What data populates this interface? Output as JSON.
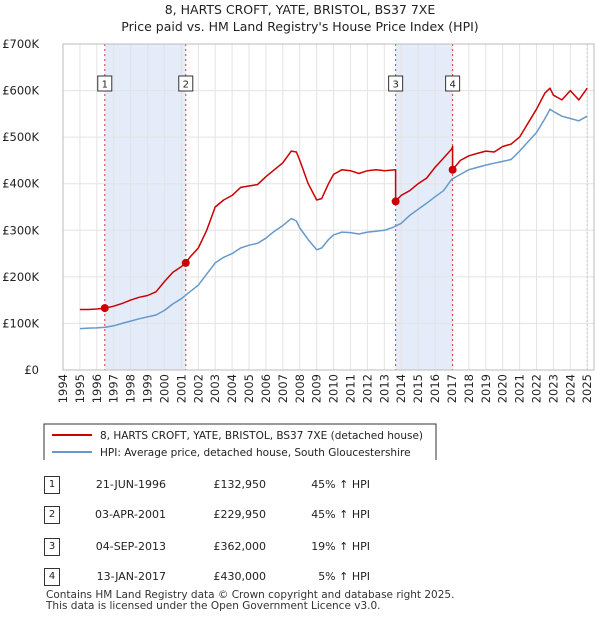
{
  "chart_data": {
    "type": "line",
    "title": "8, HARTS CROFT, YATE, BRISTOL, BS37 7XE",
    "subtitle": "Price paid vs. HM Land Registry's House Price Index (HPI)",
    "xlabel": "",
    "ylabel": "",
    "xlim": [
      1994,
      2025.4
    ],
    "ylim": [
      0,
      700000
    ],
    "grid": true,
    "x_ticks": [
      1994,
      1995,
      1996,
      1997,
      1998,
      1999,
      2000,
      2001,
      2002,
      2003,
      2004,
      2005,
      2006,
      2007,
      2008,
      2009,
      2010,
      2011,
      2012,
      2013,
      2014,
      2015,
      2016,
      2017,
      2018,
      2019,
      2020,
      2021,
      2022,
      2023,
      2024,
      2025
    ],
    "x_tick_labels": [
      "1994",
      "1995",
      "1996",
      "1997",
      "1998",
      "1999",
      "2000",
      "2001",
      "2002",
      "2003",
      "2004",
      "2005",
      "2006",
      "2007",
      "2008",
      "2009",
      "2010",
      "2011",
      "2012",
      "2013",
      "2014",
      "2015",
      "2016",
      "2017",
      "2018",
      "2019",
      "2020",
      "2021",
      "2022",
      "2023",
      "2024",
      "2025"
    ],
    "y_ticks": [
      0,
      100000,
      200000,
      300000,
      400000,
      500000,
      600000,
      700000
    ],
    "y_tick_labels": [
      "£0",
      "£100K",
      "£200K",
      "£300K",
      "£400K",
      "£500K",
      "£600K",
      "£700K"
    ],
    "legend_position": "below-chart",
    "series": [
      {
        "name": "8, HARTS CROFT, YATE, BRISTOL, BS37 7XE (detached house)",
        "color": "#cc0000",
        "x": [
          1995.0,
          1995.5,
          1996.0,
          1996.47,
          1996.47,
          1997.0,
          1997.5,
          1998.0,
          1998.5,
          1999.0,
          1999.5,
          2000.0,
          2000.5,
          2001.0,
          2001.26,
          2001.26,
          2001.5,
          2002.0,
          2002.5,
          2003.0,
          2003.5,
          2004.0,
          2004.5,
          2005.0,
          2005.5,
          2006.0,
          2006.5,
          2007.0,
          2007.5,
          2007.8,
          2008.0,
          2008.5,
          2009.0,
          2009.3,
          2009.7,
          2010.0,
          2010.5,
          2011.0,
          2011.5,
          2012.0,
          2012.5,
          2013.0,
          2013.67,
          2013.67,
          2014.0,
          2014.5,
          2015.0,
          2015.5,
          2016.0,
          2016.5,
          2017.0,
          2017.04,
          2017.04,
          2017.5,
          2018.0,
          2018.5,
          2019.0,
          2019.5,
          2020.0,
          2020.5,
          2021.0,
          2021.5,
          2022.0,
          2022.5,
          2022.8,
          2023.0,
          2023.5,
          2024.0,
          2024.5,
          2025.0
        ],
        "values": [
          130000,
          130000,
          131000,
          132950,
          132950,
          137000,
          143000,
          150000,
          156000,
          160000,
          168000,
          190000,
          210000,
          222000,
          229950,
          229950,
          242000,
          262000,
          300000,
          350000,
          365000,
          375000,
          392000,
          395000,
          398000,
          415000,
          430000,
          445000,
          470000,
          468000,
          450000,
          400000,
          365000,
          368000,
          400000,
          420000,
          430000,
          428000,
          422000,
          428000,
          430000,
          428000,
          430000,
          362000,
          375000,
          385000,
          400000,
          412000,
          435000,
          455000,
          475000,
          480000,
          430000,
          450000,
          460000,
          465000,
          470000,
          468000,
          480000,
          485000,
          500000,
          530000,
          560000,
          595000,
          605000,
          590000,
          580000,
          600000,
          580000,
          605000
        ]
      },
      {
        "name": "HPI: Average price, detached house, South Gloucestershire",
        "color": "#6699cc",
        "x": [
          1995.0,
          1995.5,
          1996.0,
          1996.5,
          1997.0,
          1997.5,
          1998.0,
          1998.5,
          1999.0,
          1999.5,
          2000.0,
          2000.5,
          2001.0,
          2001.5,
          2002.0,
          2002.5,
          2003.0,
          2003.5,
          2004.0,
          2004.5,
          2005.0,
          2005.5,
          2006.0,
          2006.5,
          2007.0,
          2007.5,
          2007.8,
          2008.0,
          2008.5,
          2009.0,
          2009.3,
          2009.7,
          2010.0,
          2010.5,
          2011.0,
          2011.5,
          2012.0,
          2012.5,
          2013.0,
          2013.5,
          2014.0,
          2014.5,
          2015.0,
          2015.5,
          2016.0,
          2016.5,
          2017.0,
          2017.5,
          2018.0,
          2018.5,
          2019.0,
          2019.5,
          2020.0,
          2020.5,
          2021.0,
          2021.5,
          2022.0,
          2022.5,
          2022.8,
          2023.0,
          2023.5,
          2024.0,
          2024.5,
          2025.0
        ],
        "values": [
          89000,
          90000,
          90500,
          92000,
          95000,
          100000,
          105000,
          110000,
          114000,
          118000,
          128000,
          142000,
          153000,
          168000,
          182000,
          206000,
          230000,
          242000,
          250000,
          262000,
          268000,
          272000,
          283000,
          298000,
          310000,
          325000,
          320000,
          305000,
          280000,
          258000,
          262000,
          280000,
          290000,
          296000,
          295000,
          292000,
          296000,
          298000,
          300000,
          306000,
          315000,
          332000,
          345000,
          358000,
          372000,
          385000,
          410000,
          420000,
          430000,
          435000,
          440000,
          444000,
          448000,
          452000,
          470000,
          490000,
          510000,
          540000,
          560000,
          555000,
          545000,
          540000,
          535000,
          545000
        ]
      }
    ],
    "sale_markers": [
      {
        "label": "1",
        "x": 1996.47,
        "value": 132950
      },
      {
        "label": "2",
        "x": 2001.26,
        "value": 229950
      },
      {
        "label": "3",
        "x": 2013.67,
        "value": 362000
      },
      {
        "label": "4",
        "x": 2017.04,
        "value": 430000
      }
    ],
    "shaded_periods": [
      [
        1996.47,
        2001.26
      ],
      [
        2013.67,
        2017.04
      ]
    ]
  },
  "sales_table": [
    {
      "num": "1",
      "date": "21-JUN-1996",
      "price": "£132,950",
      "hpi": "45% ↑ HPI"
    },
    {
      "num": "2",
      "date": "03-APR-2001",
      "price": "£229,950",
      "hpi": "45% ↑ HPI"
    },
    {
      "num": "3",
      "date": "04-SEP-2013",
      "price": "£362,000",
      "hpi": "19% ↑ HPI"
    },
    {
      "num": "4",
      "date": "13-JAN-2017",
      "price": "£430,000",
      "hpi": "5% ↑ HPI"
    }
  ],
  "footer": {
    "line1": "Contains HM Land Registry data © Crown copyright and database right 2025.",
    "line2": "This data is licensed under the Open Government Licence v3.0."
  }
}
